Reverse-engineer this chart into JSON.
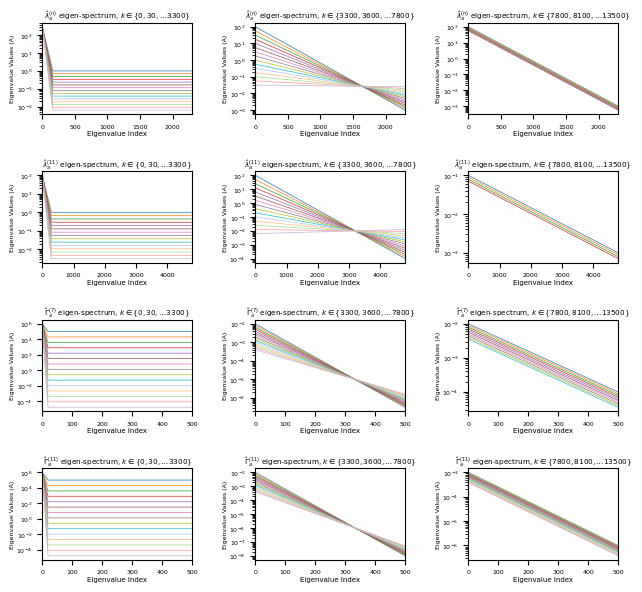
{
  "figsize": [
    6.4,
    5.97
  ],
  "dpi": 100,
  "n_lines": 15,
  "colors_tab": [
    "#1f77b4",
    "#ff7f0e",
    "#2ca02c",
    "#d62728",
    "#9467bd",
    "#8c564b",
    "#e377c2",
    "#7f7f7f",
    "#bcbd22",
    "#17becf",
    "#aec7e8",
    "#ffbb78",
    "#98df8a",
    "#ff9896",
    "#c5b0d5"
  ],
  "titles": [
    [
      "$\\hat{\\lambda}_a^{(n)}$ eigen-spectrum, $k \\in \\{0, 30, \\ldots 3300\\}$",
      "$\\hat{\\lambda}_a^{(n)}$ eigen-spectrum, $k \\in \\{3300, 3600, \\ldots 7800\\}$",
      "$\\hat{\\lambda}_a^{(n)}$ eigen-spectrum, $k \\in \\{7800, 8100, \\ldots 13500\\}$"
    ],
    [
      "$\\hat{\\lambda}_a^{(11)}$ eigen-spectrum, $k \\in \\{0, 30, \\ldots 3300\\}$",
      "$\\hat{\\lambda}_a^{(11)}$ eigen-spectrum, $k \\in \\{3300, 3600, \\ldots 7800\\}$",
      "$\\hat{\\lambda}_a^{(11)}$ eigen-spectrum, $k \\in \\{7800, 8100, \\ldots 13500\\}$"
    ],
    [
      "$\\hat{\\Gamma}_a^{(7)}$ eigen-spectrum, $k \\in \\{0, 30, \\ldots 3300\\}$",
      "$\\hat{\\Gamma}_a^{(7)}$ eigen-spectrum, $k \\in \\{3300, 3600, \\ldots 7800\\}$",
      "$\\hat{\\Gamma}_a^{(7)}$ eigen-spectrum, $k \\in \\{7800, 8100, \\ldots 13500\\}$"
    ],
    [
      "$\\hat{\\Gamma}_a^{(11)}$ eigen-spectrum, $k \\in \\{0, 30, \\ldots 3300\\}$",
      "$\\hat{\\Gamma}_a^{(11)}$ eigen-spectrum, $k \\in \\{3300, 3600, \\ldots 7800\\}$",
      "$\\hat{\\Gamma}_a^{(11)}$ eigen-spectrum, $k \\in \\{7800, 8100, \\ldots 13500\\}$"
    ]
  ],
  "xlabel": "Eigenvalue Index",
  "ylabel": "Eigenvalue Values (A)"
}
